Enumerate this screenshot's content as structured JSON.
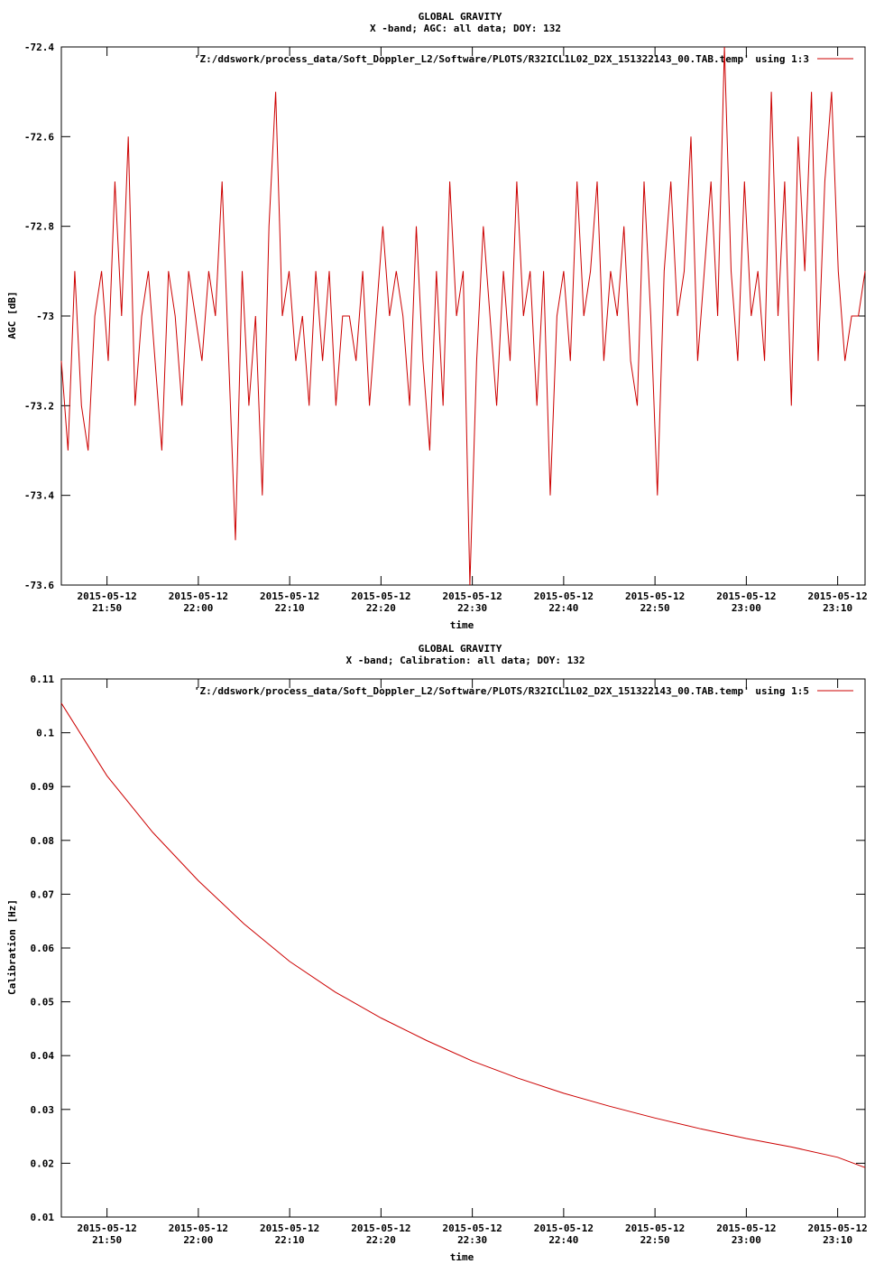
{
  "chart_data": [
    {
      "type": "line",
      "title": "GLOBAL GRAVITY",
      "subtitle": "X -band; AGC: all data; DOY: 132",
      "xlabel": "time",
      "ylabel": "AGC [dB]",
      "ylim": [
        -73.6,
        -72.4
      ],
      "y_ticks": [
        "-72.4",
        "-72.6",
        "-72.8",
        "-73",
        "-73.2",
        "-73.4",
        "-73.6"
      ],
      "y_tick_values": [
        -72.4,
        -72.6,
        -72.8,
        -73.0,
        -73.2,
        -73.4,
        -73.6
      ],
      "xlim": [
        "2015-05-12 21:45",
        "2015-05-12 23:13"
      ],
      "x_tick_values": [
        "2015-05-12 21:50",
        "2015-05-12 22:00",
        "2015-05-12 22:10",
        "2015-05-12 22:20",
        "2015-05-12 22:30",
        "2015-05-12 22:40",
        "2015-05-12 22:50",
        "2015-05-12 23:00",
        "2015-05-12 23:10"
      ],
      "x_ticks": [
        {
          "date": "2015-05-12",
          "time": "21:50"
        },
        {
          "date": "2015-05-12",
          "time": "22:00"
        },
        {
          "date": "2015-05-12",
          "time": "22:10"
        },
        {
          "date": "2015-05-12",
          "time": "22:20"
        },
        {
          "date": "2015-05-12",
          "time": "22:30"
        },
        {
          "date": "2015-05-12",
          "time": "22:40"
        },
        {
          "date": "2015-05-12",
          "time": "22:50"
        },
        {
          "date": "2015-05-12",
          "time": "23:00"
        },
        {
          "date": "2015-05-12",
          "time": "23:10"
        }
      ],
      "grid": false,
      "legend_position": "top-right",
      "series": [
        {
          "name": "'Z:/ddswork/process_data/Soft_Doppler_L2/Software/PLOTS/R32ICL1L02_D2X_151322143_00.TAB.temp' using 1:3",
          "color": "#cc0000",
          "x": [
            "21:45:00",
            "21:45:44",
            "21:46:28",
            "21:47:12",
            "21:47:56",
            "21:48:40",
            "21:49:24",
            "21:50:08",
            "21:50:52",
            "21:51:36",
            "21:52:20",
            "21:53:04",
            "21:53:48",
            "21:54:32",
            "21:55:16",
            "21:56:00",
            "21:56:44",
            "21:57:28",
            "21:58:12",
            "21:58:56",
            "21:59:40",
            "22:00:24",
            "22:01:08",
            "22:01:52",
            "22:02:36",
            "22:03:20",
            "22:04:04",
            "22:04:48",
            "22:05:32",
            "22:06:16",
            "22:07:00",
            "22:07:44",
            "22:08:28",
            "22:09:12",
            "22:09:56",
            "22:10:40",
            "22:11:24",
            "22:12:08",
            "22:12:52",
            "22:13:36",
            "22:14:20",
            "22:15:04",
            "22:15:48",
            "22:16:32",
            "22:17:16",
            "22:18:00",
            "22:18:44",
            "22:19:28",
            "22:20:12",
            "22:20:56",
            "22:21:40",
            "22:22:24",
            "22:23:08",
            "22:23:52",
            "22:24:36",
            "22:25:20",
            "22:26:04",
            "22:26:48",
            "22:27:32",
            "22:28:16",
            "22:29:00",
            "22:29:44",
            "22:30:28",
            "22:31:12",
            "22:31:56",
            "22:32:40",
            "22:33:24",
            "22:34:08",
            "22:34:52",
            "22:35:36",
            "22:36:20",
            "22:37:04",
            "22:37:48",
            "22:38:32",
            "22:39:16",
            "22:40:00",
            "22:40:44",
            "22:41:28",
            "22:42:12",
            "22:42:56",
            "22:43:40",
            "22:44:24",
            "22:45:08",
            "22:45:52",
            "22:46:36",
            "22:47:20",
            "22:48:04",
            "22:48:48",
            "22:49:32",
            "22:50:16",
            "22:51:00",
            "22:51:44",
            "22:52:28",
            "22:53:12",
            "22:53:56",
            "22:54:40",
            "22:55:24",
            "22:56:08",
            "22:56:52",
            "22:57:36",
            "22:58:20",
            "22:59:04",
            "22:59:48",
            "23:00:32",
            "23:01:16",
            "23:02:00",
            "23:02:44",
            "23:03:28",
            "23:04:12",
            "23:04:56",
            "23:05:40",
            "23:06:24",
            "23:07:08",
            "23:07:52",
            "23:08:36",
            "23:09:20",
            "23:10:04",
            "23:10:48",
            "23:11:32",
            "23:12:16",
            "23:13:00"
          ],
          "values": [
            -73.1,
            -73.3,
            -72.9,
            -73.2,
            -73.3,
            -73.0,
            -72.9,
            -73.1,
            -72.7,
            -73.0,
            -72.6,
            -73.2,
            -73.0,
            -72.9,
            -73.1,
            -73.3,
            -72.9,
            -73.0,
            -73.2,
            -72.9,
            -73.0,
            -73.1,
            -72.9,
            -73.0,
            -72.7,
            -73.1,
            -73.5,
            -72.9,
            -73.2,
            -73.0,
            -73.4,
            -72.8,
            -72.5,
            -73.0,
            -72.9,
            -73.1,
            -73.0,
            -73.2,
            -72.9,
            -73.1,
            -72.9,
            -73.2,
            -73.0,
            -73.0,
            -73.1,
            -72.9,
            -73.2,
            -73.0,
            -72.8,
            -73.0,
            -72.9,
            -73.0,
            -73.2,
            -72.8,
            -73.1,
            -73.3,
            -72.9,
            -73.2,
            -72.7,
            -73.0,
            -72.9,
            -73.6,
            -73.1,
            -72.8,
            -73.0,
            -73.2,
            -72.9,
            -73.1,
            -72.7,
            -73.0,
            -72.9,
            -73.2,
            -72.9,
            -73.4,
            -73.0,
            -72.9,
            -73.1,
            -72.7,
            -73.0,
            -72.9,
            -72.7,
            -73.1,
            -72.9,
            -73.0,
            -72.8,
            -73.1,
            -73.2,
            -72.7,
            -73.0,
            -73.4,
            -72.9,
            -72.7,
            -73.0,
            -72.9,
            -72.6,
            -73.1,
            -72.9,
            -72.7,
            -73.0,
            -72.4,
            -72.9,
            -73.1,
            -72.7,
            -73.0,
            -72.9,
            -73.1,
            -72.5,
            -73.0,
            -72.7,
            -73.2,
            -72.6,
            -72.9,
            -72.5,
            -73.1,
            -72.7,
            -72.5,
            -72.9,
            -73.1,
            -73.0,
            -73.0,
            -72.9
          ]
        }
      ]
    },
    {
      "type": "line",
      "title": "GLOBAL GRAVITY",
      "subtitle": "X -band; Calibration: all data; DOY: 132",
      "xlabel": "time",
      "ylabel": "Calibration [Hz]",
      "ylim": [
        0.01,
        0.11
      ],
      "y_ticks": [
        "0.11",
        "0.1",
        "0.09",
        "0.08",
        "0.07",
        "0.06",
        "0.05",
        "0.04",
        "0.03",
        "0.02",
        "0.01"
      ],
      "y_tick_values": [
        0.11,
        0.1,
        0.09,
        0.08,
        0.07,
        0.06,
        0.05,
        0.04,
        0.03,
        0.02,
        0.01
      ],
      "xlim": [
        "2015-05-12 21:45",
        "2015-05-12 23:13"
      ],
      "x_tick_values": [
        "2015-05-12 21:50",
        "2015-05-12 22:00",
        "2015-05-12 22:10",
        "2015-05-12 22:20",
        "2015-05-12 22:30",
        "2015-05-12 22:40",
        "2015-05-12 22:50",
        "2015-05-12 23:00",
        "2015-05-12 23:10"
      ],
      "x_ticks": [
        {
          "date": "2015-05-12",
          "time": "21:50"
        },
        {
          "date": "2015-05-12",
          "time": "22:00"
        },
        {
          "date": "2015-05-12",
          "time": "22:10"
        },
        {
          "date": "2015-05-12",
          "time": "22:20"
        },
        {
          "date": "2015-05-12",
          "time": "22:30"
        },
        {
          "date": "2015-05-12",
          "time": "22:40"
        },
        {
          "date": "2015-05-12",
          "time": "22:50"
        },
        {
          "date": "2015-05-12",
          "time": "23:00"
        },
        {
          "date": "2015-05-12",
          "time": "23:10"
        }
      ],
      "grid": false,
      "legend_position": "top-right",
      "series": [
        {
          "name": "'Z:/ddswork/process_data/Soft_Doppler_L2/Software/PLOTS/R32ICL1L02_D2X_151322143_00.TAB.temp' using 1:5",
          "color": "#cc0000",
          "x": [
            "21:45:00",
            "21:50:00",
            "21:55:00",
            "22:00:00",
            "22:05:00",
            "22:10:00",
            "22:15:00",
            "22:20:00",
            "22:25:00",
            "22:30:00",
            "22:35:00",
            "22:40:00",
            "22:45:00",
            "22:50:00",
            "22:55:00",
            "23:00:00",
            "23:05:00",
            "23:10:00",
            "23:13:00"
          ],
          "values": [
            0.1055,
            0.092,
            0.0815,
            0.0725,
            0.0645,
            0.0575,
            0.0518,
            0.047,
            0.0428,
            0.039,
            0.0358,
            0.033,
            0.0306,
            0.0284,
            0.0264,
            0.0246,
            0.023,
            0.0211,
            0.0192
          ]
        }
      ]
    }
  ]
}
